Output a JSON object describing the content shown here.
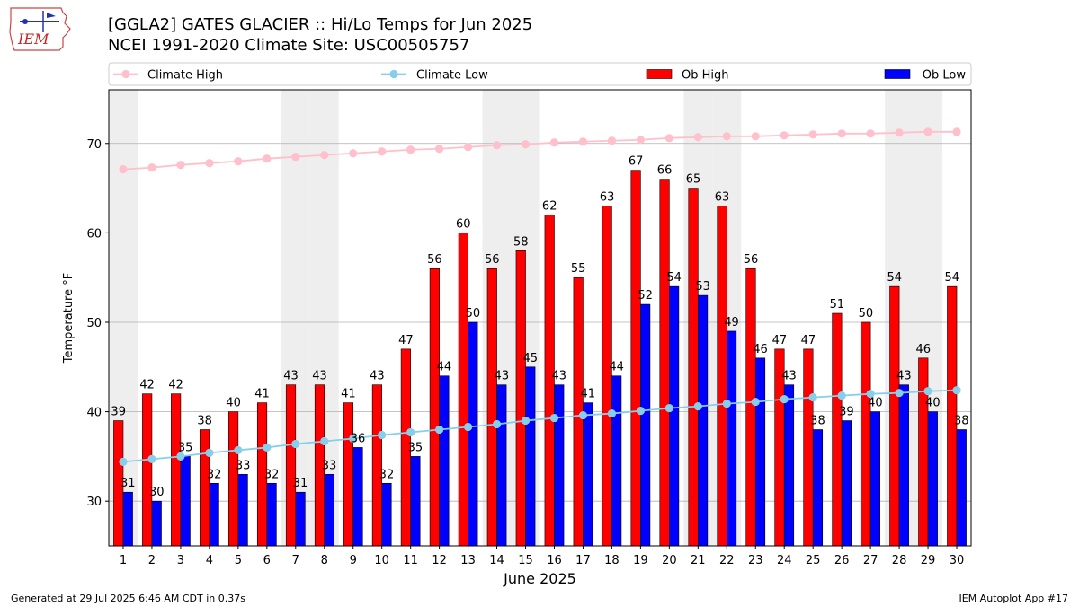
{
  "header": {
    "title_line1": "[GGLA2] GATES GLACIER :: Hi/Lo Temps for Jun 2025",
    "title_line2": "NCEI 1991-2020 Climate Site: USC00505757",
    "logo_text": "IEM"
  },
  "footer": {
    "generated": "Generated at 29 Jul 2025 6:46 AM CDT in 0.37s",
    "app": "IEM Autoplot App #17"
  },
  "colors": {
    "ob_high": "#ff0000",
    "ob_low": "#0000ff",
    "climate_high": "#ffc0cb",
    "climate_low": "#87ceeb",
    "week_shade": "#eeeeee",
    "grid": "#b0b0b0"
  },
  "chart_data": {
    "type": "bar",
    "xlabel": "June 2025",
    "ylabel": "Temperature °F",
    "ylim": [
      25,
      76
    ],
    "yticks": [
      30,
      40,
      50,
      60,
      70
    ],
    "grid": "horizontal",
    "legend_position": "top",
    "categories": [
      "1",
      "2",
      "3",
      "4",
      "5",
      "6",
      "7",
      "8",
      "9",
      "10",
      "11",
      "12",
      "13",
      "14",
      "15",
      "16",
      "17",
      "18",
      "19",
      "20",
      "21",
      "22",
      "23",
      "24",
      "25",
      "26",
      "27",
      "28",
      "29",
      "30"
    ],
    "shaded_days": [
      1,
      7,
      8,
      14,
      15,
      21,
      22,
      28,
      29
    ],
    "series": [
      {
        "name": "Climate High",
        "kind": "line",
        "values": [
          67.1,
          67.3,
          67.6,
          67.8,
          68.0,
          68.3,
          68.5,
          68.7,
          68.9,
          69.1,
          69.3,
          69.4,
          69.6,
          69.8,
          69.9,
          70.1,
          70.2,
          70.3,
          70.4,
          70.6,
          70.7,
          70.8,
          70.8,
          70.9,
          71.0,
          71.1,
          71.1,
          71.2,
          71.3,
          71.3
        ]
      },
      {
        "name": "Climate Low",
        "kind": "line",
        "values": [
          34.4,
          34.7,
          35.0,
          35.4,
          35.7,
          36.0,
          36.4,
          36.7,
          37.0,
          37.4,
          37.7,
          38.0,
          38.3,
          38.6,
          39.0,
          39.3,
          39.6,
          39.8,
          40.1,
          40.4,
          40.6,
          40.9,
          41.1,
          41.4,
          41.6,
          41.8,
          42.0,
          42.1,
          42.3,
          42.4
        ]
      },
      {
        "name": "Ob High",
        "kind": "bar",
        "values": [
          39,
          42,
          42,
          38,
          40,
          41,
          43,
          43,
          41,
          43,
          47,
          56,
          60,
          56,
          58,
          62,
          55,
          63,
          67,
          66,
          65,
          63,
          56,
          47,
          47,
          51,
          50,
          54,
          46,
          54
        ]
      },
      {
        "name": "Ob Low",
        "kind": "bar",
        "values": [
          31,
          30,
          35,
          32,
          33,
          32,
          31,
          33,
          36,
          32,
          35,
          44,
          50,
          43,
          45,
          43,
          41,
          44,
          52,
          54,
          53,
          49,
          46,
          43,
          38,
          39,
          40,
          43,
          40,
          38
        ]
      }
    ]
  }
}
